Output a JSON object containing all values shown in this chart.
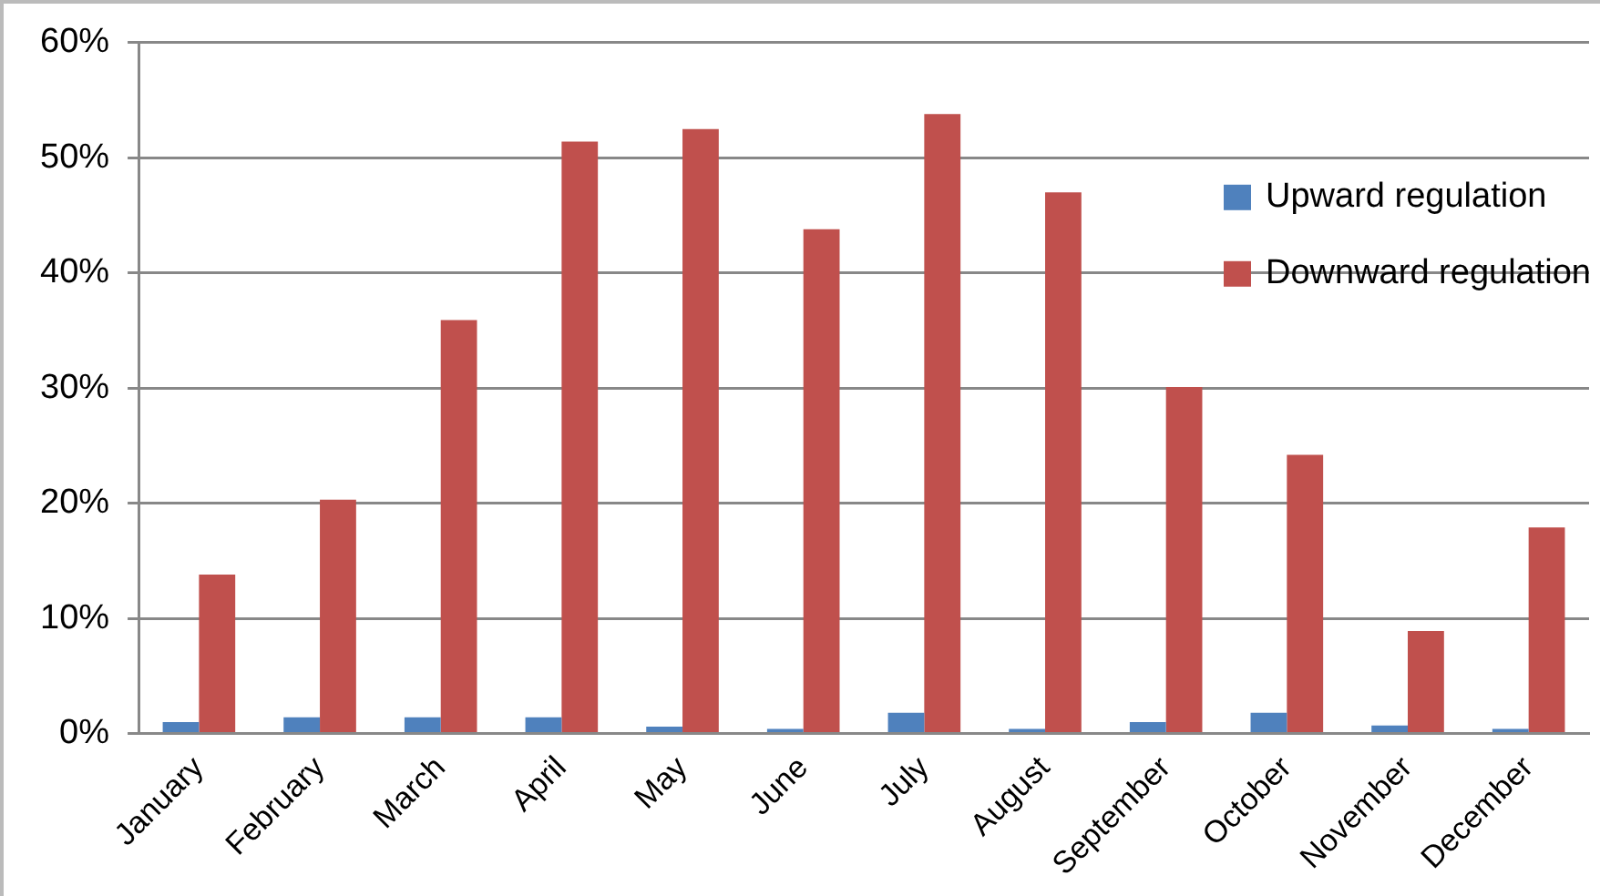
{
  "chart_data": {
    "type": "bar",
    "categories": [
      "January",
      "February",
      "March",
      "April",
      "May",
      "June",
      "July",
      "August",
      "September",
      "October",
      "November",
      "December"
    ],
    "series": [
      {
        "name": "Upward regulation",
        "color": "#4f81bd",
        "values": [
          1.0,
          1.4,
          1.4,
          1.4,
          0.6,
          0.4,
          1.8,
          0.4,
          1.0,
          1.8,
          0.7,
          0.4
        ]
      },
      {
        "name": "Downward regulation",
        "color": "#c0504d",
        "values": [
          13.8,
          20.3,
          35.9,
          51.4,
          52.5,
          43.8,
          53.8,
          47.0,
          30.1,
          24.2,
          8.9,
          17.9
        ]
      }
    ],
    "ylim": [
      0,
      60
    ],
    "yticks": [
      {
        "value": 0,
        "label": "0%"
      },
      {
        "value": 10,
        "label": "10%"
      },
      {
        "value": 20,
        "label": "20%"
      },
      {
        "value": 30,
        "label": "30%"
      },
      {
        "value": 40,
        "label": "40%"
      },
      {
        "value": 50,
        "label": "50%"
      },
      {
        "value": 60,
        "label": "60%"
      }
    ],
    "grid": "y",
    "legend": "right"
  }
}
